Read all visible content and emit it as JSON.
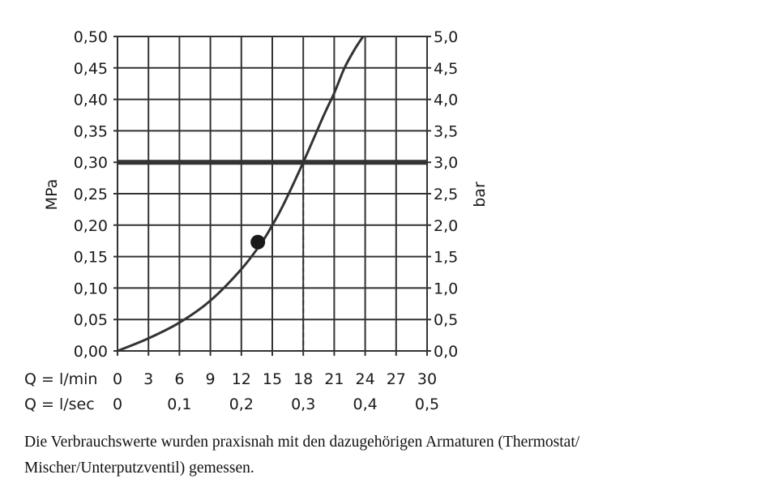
{
  "chart_data": {
    "type": "line",
    "title": "",
    "ylabel_left": "MPa",
    "ylabel_right": "bar",
    "x_row_labels": [
      "Q = l/min",
      "Q = l/sec"
    ],
    "x_lmin_ticks": [
      "0",
      "3",
      "6",
      "9",
      "12",
      "15",
      "18",
      "21",
      "24",
      "27",
      "30"
    ],
    "x_lsec_ticks": [
      "0",
      "0,1",
      "0,2",
      "0,3",
      "0,4",
      "0,5"
    ],
    "y_left_ticks": [
      "0,00",
      "0,05",
      "0,10",
      "0,15",
      "0,20",
      "0,25",
      "0,30",
      "0,35",
      "0,40",
      "0,45",
      "0,50"
    ],
    "y_right_ticks": [
      "0,0",
      "0,5",
      "1,0",
      "1,5",
      "2,0",
      "2,5",
      "3,0",
      "3,5",
      "4,0",
      "4,5",
      "5,0"
    ],
    "xlim": [
      0,
      30
    ],
    "ylim": [
      0,
      0.5
    ],
    "grid": true,
    "series": [
      {
        "x": [
          0,
          3,
          6,
          9,
          12,
          14,
          15,
          16,
          18,
          20,
          21,
          22,
          23,
          23.8
        ],
        "y": [
          0,
          0.02,
          0.045,
          0.08,
          0.13,
          0.173,
          0.2,
          0.23,
          0.3,
          0.375,
          0.41,
          0.45,
          0.48,
          0.5
        ]
      }
    ],
    "reference_line": {
      "y": 0.3
    },
    "operating_point": {
      "x": 18,
      "y": 0.3
    },
    "marker": {
      "x": 13.6,
      "y": 0.173
    },
    "colors": {
      "line": "#333333",
      "grid": "#333333",
      "reference": "#333333"
    }
  },
  "caption": {
    "line1": "Die Verbrauchswerte wurden praxisnah mit den dazugehörigen Armaturen (Thermostat/",
    "line2": "Mischer/Unterputzventil) gemessen."
  }
}
